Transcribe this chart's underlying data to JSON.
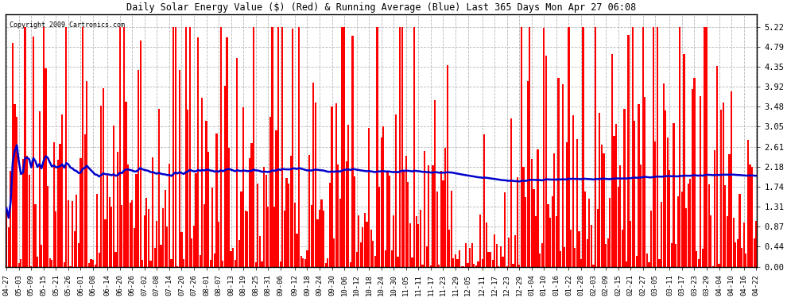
{
  "title": "Daily Solar Energy Value ($) (Red) & Running Average (Blue) Last 365 Days Mon Apr 27 06:08",
  "copyright": "Copyright 2009 Cartronics.com",
  "bar_color": "#ff0000",
  "line_color": "#0000cc",
  "background_color": "#ffffff",
  "plot_bg_color": "#ffffff",
  "grid_color": "#999999",
  "yticks": [
    0.0,
    0.44,
    0.87,
    1.31,
    1.74,
    2.18,
    2.61,
    3.05,
    3.48,
    3.92,
    4.35,
    4.79,
    5.22
  ],
  "ylim": [
    0,
    5.5
  ],
  "xlabels": [
    "04-27",
    "05-03",
    "05-09",
    "05-15",
    "05-21",
    "05-26",
    "06-01",
    "06-08",
    "06-14",
    "06-20",
    "06-26",
    "07-02",
    "07-08",
    "07-14",
    "07-20",
    "07-26",
    "08-01",
    "08-07",
    "08-13",
    "08-19",
    "08-25",
    "08-31",
    "09-06",
    "09-12",
    "09-18",
    "09-24",
    "09-30",
    "10-06",
    "10-12",
    "10-18",
    "10-24",
    "10-30",
    "11-05",
    "11-11",
    "11-17",
    "11-23",
    "11-29",
    "12-05",
    "12-11",
    "12-17",
    "12-23",
    "12-29",
    "01-04",
    "01-10",
    "01-16",
    "01-22",
    "01-28",
    "02-03",
    "02-09",
    "02-15",
    "02-21",
    "02-27",
    "03-05",
    "03-11",
    "03-17",
    "03-23",
    "03-29",
    "04-04",
    "04-10",
    "04-16",
    "04-22"
  ],
  "num_days": 365,
  "seed": 7
}
